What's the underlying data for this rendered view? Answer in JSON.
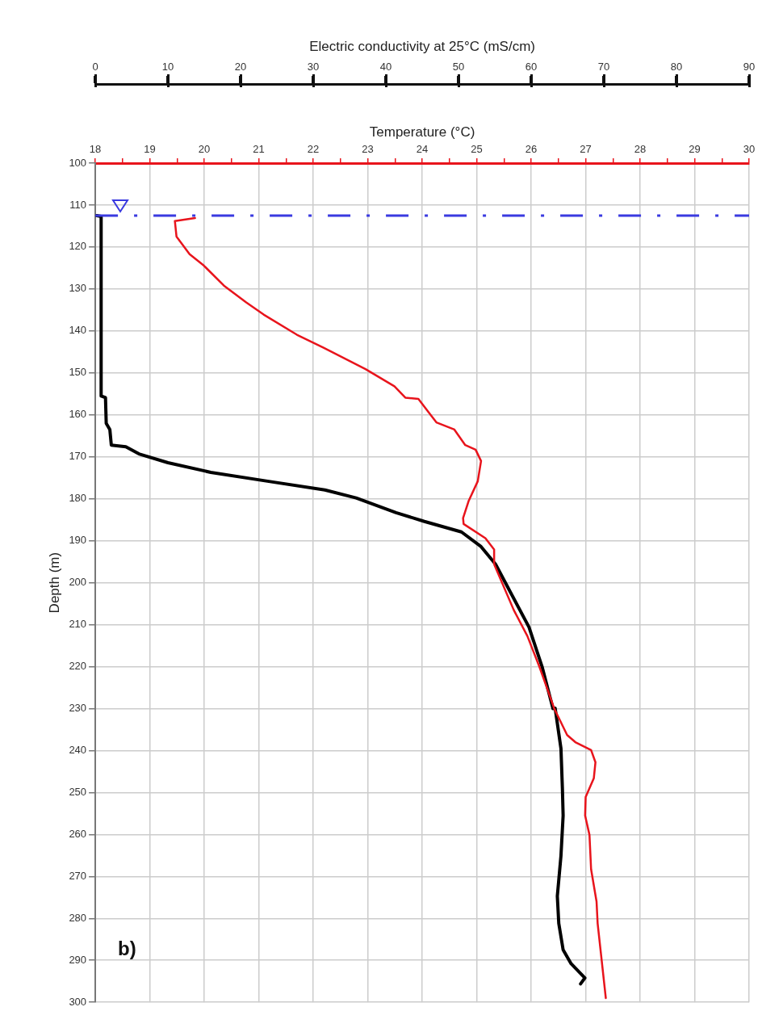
{
  "chart_data": {
    "type": "line",
    "xlabel": "Temperature (°C)",
    "x2label": "Electric conductivity at 25°C (mS/cm)",
    "ylabel": "Depth (m)",
    "xlim": [
      18,
      30
    ],
    "xticks": [
      18,
      {
        "value": 18.5,
        "label": null
      },
      19,
      {
        "value": 19.5,
        "label": null
      },
      20,
      {
        "value": 20.5,
        "label": null
      },
      21,
      {
        "value": 21.5,
        "label": null
      },
      22,
      {
        "value": 22.5,
        "label": null
      },
      23,
      {
        "value": 23.5,
        "label": null
      },
      24,
      {
        "value": 24.5,
        "label": null
      },
      25,
      {
        "value": 25.5,
        "label": null
      },
      26,
      {
        "value": 26.5,
        "label": null
      },
      27,
      {
        "value": 27.5,
        "label": null
      },
      28,
      {
        "value": 28.5,
        "label": null
      },
      29,
      {
        "value": 29.5,
        "label": null
      },
      30
    ],
    "x2lim": [
      0,
      90
    ],
    "x2ticks": [
      0,
      10,
      20,
      30,
      40,
      50,
      60,
      70,
      80,
      90
    ],
    "ylim": [
      300,
      100
    ],
    "yticks": [
      100,
      110,
      120,
      130,
      140,
      150,
      160,
      170,
      180,
      190,
      200,
      210,
      220,
      230,
      240,
      250,
      260,
      270,
      280,
      290,
      300
    ],
    "series": [
      {
        "color": "#e8141c",
        "x": [
          19.83,
          19.46,
          19.49,
          19.73,
          19.99,
          20.36,
          20.77,
          21.09,
          21.7,
          22.19,
          22.96,
          23.49,
          23.69,
          23.93,
          24.26,
          24.59,
          24.79,
          24.98,
          25.08,
          25.02,
          24.85,
          24.75,
          24.76,
          25.16,
          25.32,
          25.32,
          25.68,
          25.93,
          26.15,
          26.37,
          26.42,
          26.66,
          26.81,
          27.1,
          27.18,
          27.15,
          27.0,
          26.99,
          27.07,
          27.1,
          27.2,
          27.22,
          27.37
        ],
        "values": [
          113.1,
          113.8,
          117.5,
          121.7,
          124.4,
          129.2,
          133.2,
          136.1,
          140.9,
          144.0,
          149.1,
          153.2,
          155.9,
          156.2,
          161.8,
          163.5,
          167.2,
          168.3,
          171.0,
          175.8,
          180.6,
          184.6,
          186.0,
          189.4,
          192.1,
          195.6,
          206.5,
          212.7,
          220.0,
          228.0,
          229.9,
          236.3,
          238.0,
          239.9,
          242.8,
          246.6,
          251.1,
          255.5,
          260.1,
          268.3,
          276.0,
          281.2,
          299.0
        ]
      },
      {
        "color": "#000000",
        "axis": "x2",
        "x": [
          0.2,
          0.8,
          0.8,
          1.4,
          1.5,
          2.0,
          2.2,
          4.2,
          6.0,
          10.0,
          15.9,
          23.7,
          31.6,
          35.9,
          41.4,
          45.3,
          50.4,
          53.1,
          55.1,
          59.7,
          61.5,
          63.0,
          63.3,
          64.1,
          64.3,
          64.4,
          64.1,
          63.6,
          63.8,
          64.4,
          65.5,
          67.4,
          66.8
        ],
        "values": [
          112.5,
          112.7,
          155.5,
          155.9,
          162.0,
          163.5,
          167.2,
          167.6,
          169.3,
          171.4,
          173.7,
          175.8,
          177.9,
          179.8,
          183.3,
          185.4,
          187.9,
          191.4,
          195.6,
          210.6,
          220.0,
          230.0,
          229.9,
          239.5,
          249.1,
          255.5,
          265.1,
          274.7,
          281.2,
          287.5,
          290.8,
          294.2,
          295.6
        ]
      }
    ],
    "ref_lines": [
      {
        "axis": "y",
        "value": 112.5,
        "color": "#3a3ae0",
        "line_style": "dashed"
      }
    ],
    "annotations": [
      "b)"
    ],
    "grid": true,
    "legend": false,
    "marker": "none",
    "line_style": "solid"
  }
}
